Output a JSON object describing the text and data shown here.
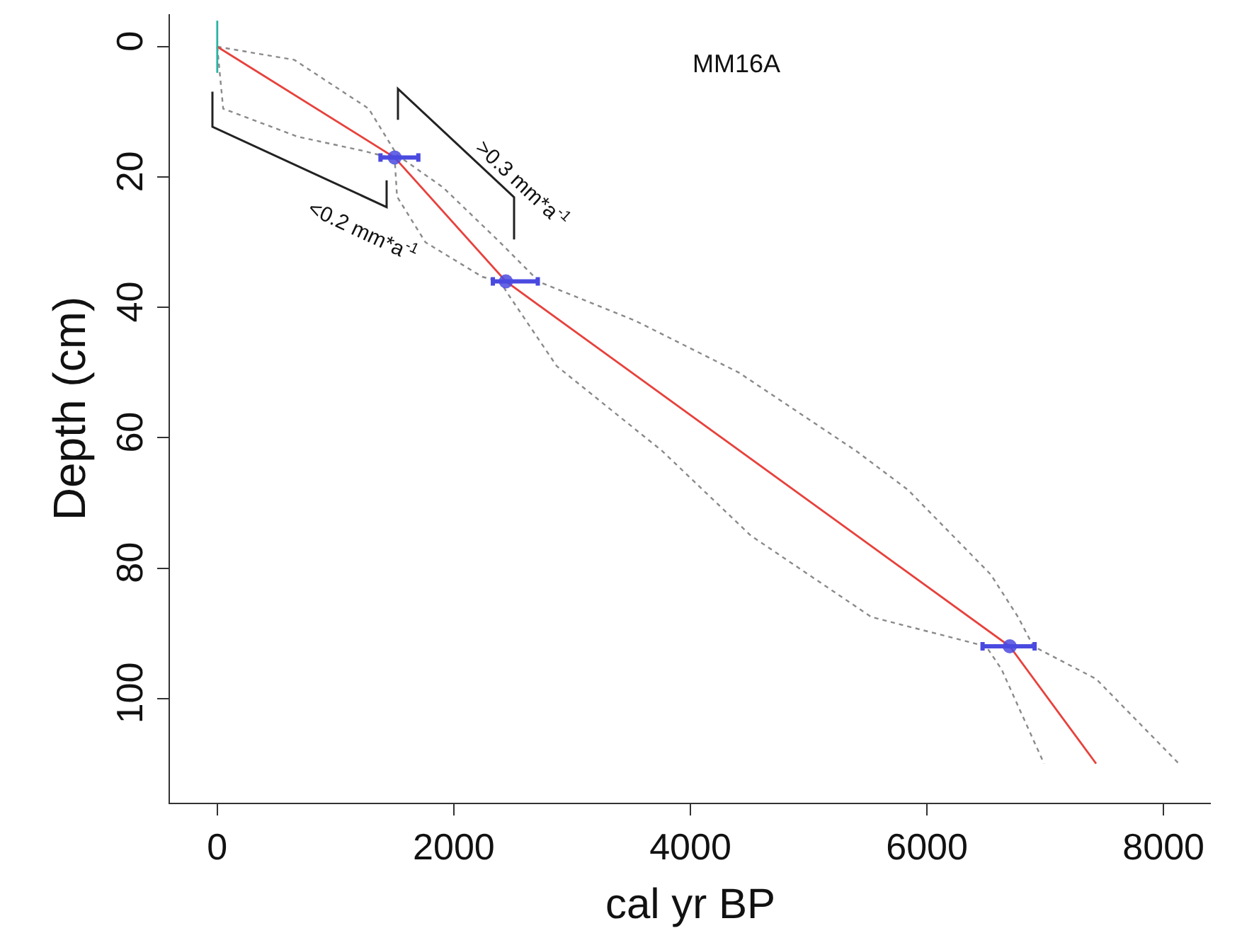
{
  "chart_data": {
    "type": "line",
    "title": "MM16A",
    "xlabel": "cal yr BP",
    "ylabel": "Depth (cm)",
    "xlim": [
      -400,
      8400
    ],
    "xticks": [
      0,
      2000,
      4000,
      6000,
      8000
    ],
    "ylim": [
      116,
      -5
    ],
    "yticks": [
      0,
      20,
      40,
      60,
      80,
      100
    ],
    "marker": "none",
    "series": [
      {
        "line_style": "dotted",
        "color": "#8a8a8a",
        "x": [
          0,
          650,
          1280,
          1520,
          1910,
          2390,
          2680,
          2710,
          3530,
          4410,
          5400,
          5840,
          6540,
          6770,
          6900,
          7430,
          8130
        ],
        "values": [
          0,
          2,
          9.5,
          16.6,
          21.6,
          30,
          35.3,
          36,
          42,
          50,
          62,
          68,
          81,
          87.5,
          92,
          97,
          110
        ]
      },
      {
        "line_style": "dotted",
        "color": "#8a8a8a",
        "x": [
          0,
          50,
          680,
          1240,
          1500,
          1520,
          1760,
          2240,
          2390,
          2460,
          2870,
          3760,
          4510,
          5530,
          6500,
          6630,
          6990
        ],
        "values": [
          0,
          9.5,
          13.8,
          16,
          17.2,
          23,
          30,
          35.3,
          36,
          38,
          49,
          62,
          75,
          87.5,
          92,
          95.5,
          110
        ]
      },
      {
        "line_style": "solid",
        "color": "#e8413c",
        "x": [
          0,
          1500,
          2440,
          6700,
          7430
        ],
        "values": [
          0,
          17,
          36,
          92,
          110
        ]
      },
      {
        "line_style": "solid",
        "color": "#2bb3a3",
        "x": [
          0,
          0
        ],
        "values": [
          -4,
          4
        ]
      },
      {
        "type": "scatter",
        "marker": "circle",
        "color": "#4a4ae0",
        "x": [
          1500,
          2440,
          6700
        ],
        "values": [
          17,
          36,
          92
        ],
        "xerrors": [
          [
            1380,
            1700
          ],
          [
            2330,
            2710
          ],
          [
            6470,
            6910
          ]
        ]
      }
    ],
    "annotations": [
      "<0.2 mm*a$^{-1}$",
      ">0.3 mm*a$^{-1}$"
    ]
  }
}
